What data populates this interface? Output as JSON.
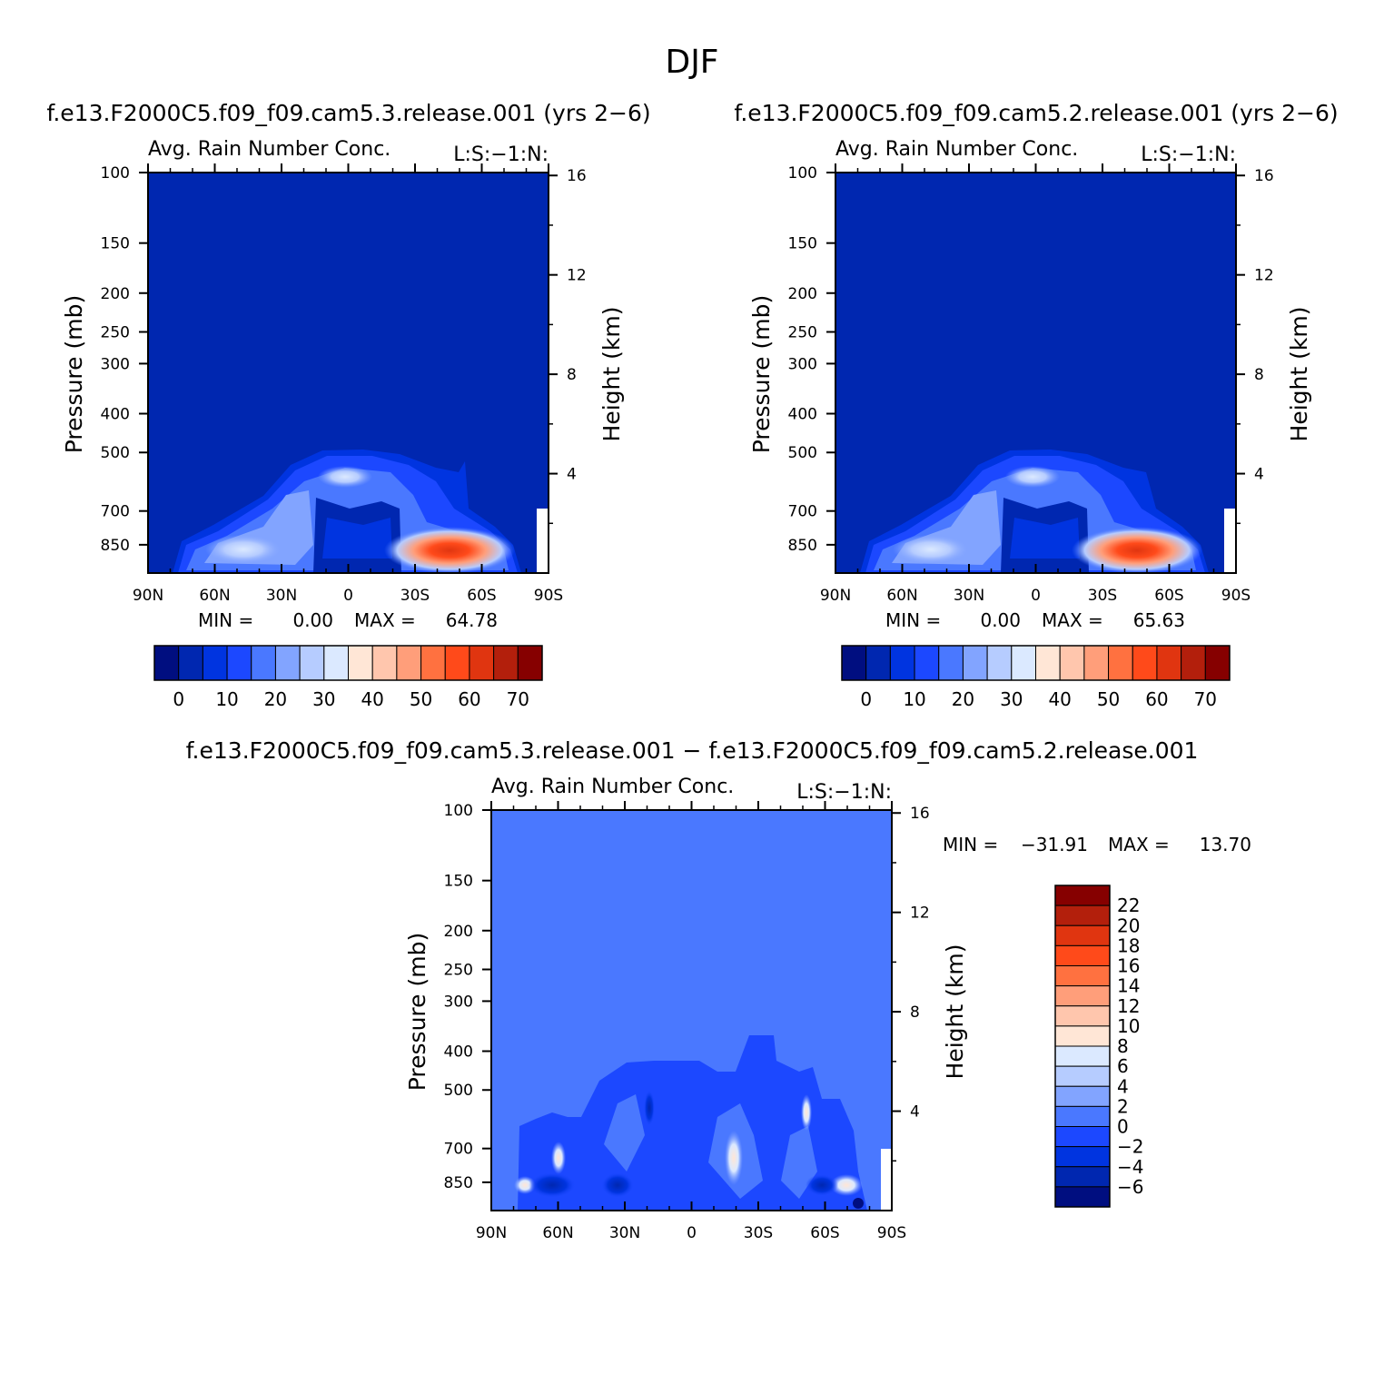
{
  "figure": {
    "season_title": "DJF",
    "difference_header": "f.e13.F2000C5.f09_f09.cam5.3.release.001 − f.e13.F2000C5.f09_f09.cam5.2.release.001"
  },
  "chart_data": [
    {
      "type": "heatmap",
      "header": "f.e13.F2000C5.f09_f09.cam5.3.release.001 (yrs 2−6)",
      "title": "Avg. Rain Number Conc.",
      "corner_label": "L:S:−1:N:",
      "ylabel": "Pressure (mb)",
      "y2label": "Height (km)",
      "x_ticks": [
        "90N",
        "60N",
        "30N",
        "0",
        "30S",
        "60S",
        "90S"
      ],
      "y_ticks": [
        "100",
        "150",
        "200",
        "250",
        "300",
        "400",
        "500",
        "700",
        "850"
      ],
      "y2_ticks": [
        "16",
        "12",
        "8",
        "4"
      ],
      "ylim": [
        1000,
        100
      ],
      "y_log_scale": true,
      "min_label": "MIN =",
      "min_value": "0.00",
      "max_label": "MAX =",
      "max_value": "64.78",
      "colorbar_labels": [
        "0",
        "10",
        "20",
        "30",
        "40",
        "50",
        "60",
        "70"
      ],
      "colors": [
        "#000e80",
        "#0027b0",
        "#0034e0",
        "#1c48ff",
        "#4a78ff",
        "#82a4ff",
        "#b6ccff",
        "#dbe9ff",
        "#ffe6d6",
        "#ffc6ad",
        "#ff9e7a",
        "#ff7140",
        "#ff4a1a",
        "#e03510",
        "#b31f0c",
        "#860000"
      ]
    },
    {
      "type": "heatmap",
      "header": "f.e13.F2000C5.f09_f09.cam5.2.release.001 (yrs 2−6)",
      "title": "Avg. Rain Number Conc.",
      "corner_label": "L:S:−1:N:",
      "ylabel": "Pressure (mb)",
      "y2label": "Height (km)",
      "x_ticks": [
        "90N",
        "60N",
        "30N",
        "0",
        "30S",
        "60S",
        "90S"
      ],
      "y_ticks": [
        "100",
        "150",
        "200",
        "250",
        "300",
        "400",
        "500",
        "700",
        "850"
      ],
      "y2_ticks": [
        "16",
        "12",
        "8",
        "4"
      ],
      "ylim": [
        1000,
        100
      ],
      "y_log_scale": true,
      "min_label": "MIN =",
      "min_value": "0.00",
      "max_label": "MAX =",
      "max_value": "65.63",
      "colorbar_labels": [
        "0",
        "10",
        "20",
        "30",
        "40",
        "50",
        "60",
        "70"
      ],
      "colors": [
        "#000e80",
        "#0027b0",
        "#0034e0",
        "#1c48ff",
        "#4a78ff",
        "#82a4ff",
        "#b6ccff",
        "#dbe9ff",
        "#ffe6d6",
        "#ffc6ad",
        "#ff9e7a",
        "#ff7140",
        "#ff4a1a",
        "#e03510",
        "#b31f0c",
        "#860000"
      ]
    },
    {
      "type": "heatmap",
      "title": "Avg. Rain Number Conc.",
      "corner_label": "L:S:−1:N:",
      "ylabel": "Pressure (mb)",
      "y2label": "Height (km)",
      "x_ticks": [
        "90N",
        "60N",
        "30N",
        "0",
        "30S",
        "60S",
        "90S"
      ],
      "y_ticks": [
        "100",
        "150",
        "200",
        "250",
        "300",
        "400",
        "500",
        "700",
        "850"
      ],
      "y2_ticks": [
        "16",
        "12",
        "8",
        "4"
      ],
      "ylim": [
        1000,
        100
      ],
      "y_log_scale": true,
      "min_label": "MIN =",
      "min_value": "−31.91",
      "max_label": "MAX =",
      "max_value": "13.70",
      "colorbar_labels": [
        "22",
        "20",
        "18",
        "16",
        "14",
        "12",
        "10",
        "8",
        "6",
        "4",
        "2",
        "0",
        "−2",
        "−4",
        "−6"
      ],
      "colors": [
        "#860000",
        "#b31f0c",
        "#e03510",
        "#ff4a1a",
        "#ff7140",
        "#ff9e7a",
        "#ffc6ad",
        "#ffe6d6",
        "#dbe9ff",
        "#b6ccff",
        "#82a4ff",
        "#4a78ff",
        "#1c48ff",
        "#0034e0",
        "#0027b0",
        "#000e80"
      ]
    }
  ]
}
